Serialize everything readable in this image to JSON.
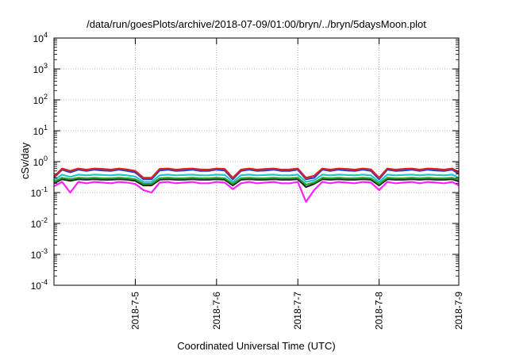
{
  "chart_data": {
    "type": "line",
    "title": "/data/run/goesPlots/archive/2018-07-09/01:00/bryn/../bryn/5daysMoon.plot",
    "xlabel": "Coordinated Universal Time (UTC)",
    "ylabel": "cSv/day",
    "yscale": "log",
    "ylim": [
      0.0001,
      10000
    ],
    "xlim": [
      0,
      4.98
    ],
    "x_ticks": [
      {
        "value": 1,
        "label": "2018-7-5"
      },
      {
        "value": 2,
        "label": "2018-7-6"
      },
      {
        "value": 3,
        "label": "2018-7-7"
      },
      {
        "value": 4,
        "label": "2018-7-8"
      },
      {
        "value": 4.98,
        "label": "2018-7-9"
      }
    ],
    "y_ticks": [
      {
        "value": 0.0001,
        "base": "10",
        "exp": "-4"
      },
      {
        "value": 0.001,
        "base": "10",
        "exp": "-3"
      },
      {
        "value": 0.01,
        "base": "10",
        "exp": "-2"
      },
      {
        "value": 0.1,
        "base": "10",
        "exp": "-1"
      },
      {
        "value": 1,
        "base": "10",
        "exp": "0"
      },
      {
        "value": 10,
        "base": "10",
        "exp": "1"
      },
      {
        "value": 100,
        "base": "10",
        "exp": "2"
      },
      {
        "value": 1000,
        "base": "10",
        "exp": "3"
      },
      {
        "value": 10000,
        "base": "10",
        "exp": "4"
      }
    ],
    "grid": true,
    "x": [
      0,
      0.1,
      0.2,
      0.3,
      0.4,
      0.5,
      0.6,
      0.7,
      0.8,
      0.9,
      1.0,
      1.1,
      1.2,
      1.3,
      1.4,
      1.5,
      1.6,
      1.7,
      1.8,
      1.9,
      2.0,
      2.1,
      2.2,
      2.3,
      2.4,
      2.5,
      2.6,
      2.7,
      2.8,
      2.9,
      3.0,
      3.1,
      3.2,
      3.3,
      3.4,
      3.5,
      3.6,
      3.7,
      3.8,
      3.9,
      4.0,
      4.1,
      4.2,
      4.3,
      4.4,
      4.5,
      4.6,
      4.7,
      4.8,
      4.9,
      4.98
    ],
    "series": [
      {
        "color": "#e0201b",
        "values": [
          0.32,
          0.6,
          0.5,
          0.6,
          0.55,
          0.6,
          0.58,
          0.55,
          0.6,
          0.56,
          0.5,
          0.3,
          0.3,
          0.58,
          0.6,
          0.55,
          0.58,
          0.6,
          0.56,
          0.55,
          0.6,
          0.58,
          0.3,
          0.55,
          0.6,
          0.55,
          0.58,
          0.6,
          0.55,
          0.56,
          0.6,
          0.3,
          0.35,
          0.6,
          0.55,
          0.6,
          0.58,
          0.55,
          0.6,
          0.56,
          0.3,
          0.6,
          0.55,
          0.58,
          0.6,
          0.55,
          0.6,
          0.58,
          0.55,
          0.6,
          0.45
        ]
      },
      {
        "color": "#2a3fcf",
        "values": [
          0.3,
          0.55,
          0.45,
          0.55,
          0.5,
          0.55,
          0.52,
          0.5,
          0.55,
          0.5,
          0.45,
          0.27,
          0.27,
          0.52,
          0.55,
          0.5,
          0.52,
          0.55,
          0.5,
          0.5,
          0.55,
          0.52,
          0.27,
          0.5,
          0.55,
          0.5,
          0.52,
          0.55,
          0.5,
          0.5,
          0.55,
          0.27,
          0.3,
          0.55,
          0.5,
          0.55,
          0.52,
          0.5,
          0.55,
          0.5,
          0.27,
          0.55,
          0.5,
          0.52,
          0.55,
          0.5,
          0.55,
          0.52,
          0.5,
          0.55,
          0.4
        ]
      },
      {
        "color": "#20c6c0",
        "values": [
          0.25,
          0.38,
          0.32,
          0.38,
          0.36,
          0.38,
          0.37,
          0.36,
          0.38,
          0.36,
          0.33,
          0.22,
          0.22,
          0.36,
          0.38,
          0.36,
          0.37,
          0.38,
          0.36,
          0.36,
          0.38,
          0.37,
          0.22,
          0.36,
          0.38,
          0.36,
          0.37,
          0.38,
          0.36,
          0.36,
          0.38,
          0.22,
          0.25,
          0.38,
          0.36,
          0.38,
          0.37,
          0.36,
          0.38,
          0.36,
          0.22,
          0.38,
          0.36,
          0.37,
          0.38,
          0.36,
          0.38,
          0.37,
          0.36,
          0.38,
          0.3
        ]
      },
      {
        "color": "#2aa02a",
        "values": [
          0.22,
          0.3,
          0.27,
          0.3,
          0.29,
          0.3,
          0.29,
          0.29,
          0.3,
          0.29,
          0.27,
          0.19,
          0.19,
          0.29,
          0.3,
          0.29,
          0.29,
          0.3,
          0.29,
          0.29,
          0.3,
          0.29,
          0.19,
          0.29,
          0.3,
          0.29,
          0.29,
          0.3,
          0.29,
          0.29,
          0.3,
          0.18,
          0.21,
          0.3,
          0.29,
          0.3,
          0.29,
          0.29,
          0.3,
          0.29,
          0.19,
          0.3,
          0.29,
          0.29,
          0.3,
          0.29,
          0.3,
          0.29,
          0.29,
          0.3,
          0.26
        ]
      },
      {
        "color": "#222222",
        "values": [
          0.2,
          0.27,
          0.24,
          0.27,
          0.26,
          0.27,
          0.26,
          0.26,
          0.27,
          0.26,
          0.24,
          0.17,
          0.17,
          0.26,
          0.27,
          0.26,
          0.26,
          0.27,
          0.26,
          0.26,
          0.27,
          0.26,
          0.17,
          0.26,
          0.27,
          0.26,
          0.26,
          0.27,
          0.26,
          0.26,
          0.27,
          0.15,
          0.19,
          0.27,
          0.26,
          0.27,
          0.26,
          0.26,
          0.27,
          0.26,
          0.17,
          0.27,
          0.26,
          0.26,
          0.27,
          0.26,
          0.27,
          0.26,
          0.26,
          0.27,
          0.23
        ]
      },
      {
        "color": "#ff20ff",
        "values": [
          0.16,
          0.22,
          0.1,
          0.22,
          0.2,
          0.22,
          0.21,
          0.2,
          0.22,
          0.21,
          0.19,
          0.12,
          0.1,
          0.21,
          0.22,
          0.2,
          0.21,
          0.22,
          0.2,
          0.2,
          0.22,
          0.21,
          0.13,
          0.2,
          0.22,
          0.2,
          0.21,
          0.22,
          0.2,
          0.2,
          0.22,
          0.05,
          0.12,
          0.22,
          0.2,
          0.22,
          0.21,
          0.2,
          0.22,
          0.21,
          0.12,
          0.22,
          0.2,
          0.21,
          0.22,
          0.2,
          0.22,
          0.21,
          0.2,
          0.22,
          0.17
        ]
      }
    ]
  }
}
